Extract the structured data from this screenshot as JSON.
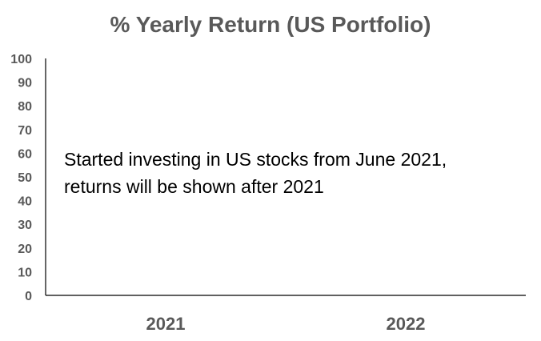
{
  "colors": {
    "title": "#595959",
    "tick_label": "#595959",
    "axis_line": "#000000",
    "annotation": "#000000"
  },
  "chart_data": {
    "type": "bar",
    "title": "% Yearly Return (US Portfolio)",
    "xlabel": "",
    "ylabel": "",
    "categories": [
      "2021",
      "2022"
    ],
    "series": [
      {
        "values": [
          null,
          null
        ]
      }
    ],
    "ylim": [
      0,
      100
    ],
    "yticks": [
      "0",
      "10",
      "20",
      "30",
      "40",
      "50",
      "60",
      "70",
      "80",
      "90",
      "100"
    ],
    "grid": false,
    "legend": "none",
    "annotation": [
      "Started investing in US stocks from June 2021,",
      "returns will be shown after 2021"
    ]
  }
}
